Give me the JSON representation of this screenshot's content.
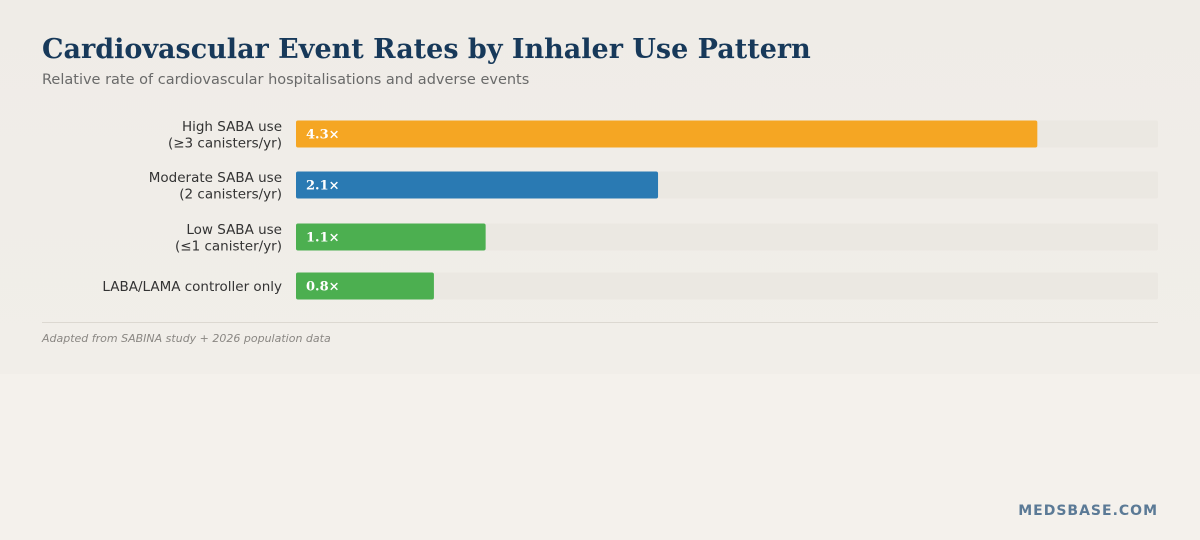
{
  "title": "Cardiovascular Event Rates by Inhaler Use Pattern",
  "subtitle": "Relative rate of cardiovascular hospitalisations and adverse events",
  "source": "Adapted from SABINA study + 2026 population data",
  "brand": "MEDSBASE.COM",
  "chart_data": {
    "type": "bar",
    "orientation": "horizontal",
    "categories": [
      [
        "High SABA use",
        "(≥3 canisters/yr)"
      ],
      [
        "Moderate SABA use",
        "(2 canisters/yr)"
      ],
      [
        "Low SABA use",
        "(≤1 canister/yr)"
      ],
      [
        "LABA/LAMA controller only"
      ]
    ],
    "values": [
      4.3,
      2.1,
      1.1,
      0.8
    ],
    "value_labels": [
      "4.3×",
      "2.1×",
      "1.1×",
      "0.8×"
    ],
    "colors": [
      "#f5a623",
      "#2a7ab3",
      "#4caf50",
      "#4caf50"
    ],
    "xlim": [
      0,
      5
    ],
    "grid": false,
    "legend": "none"
  }
}
